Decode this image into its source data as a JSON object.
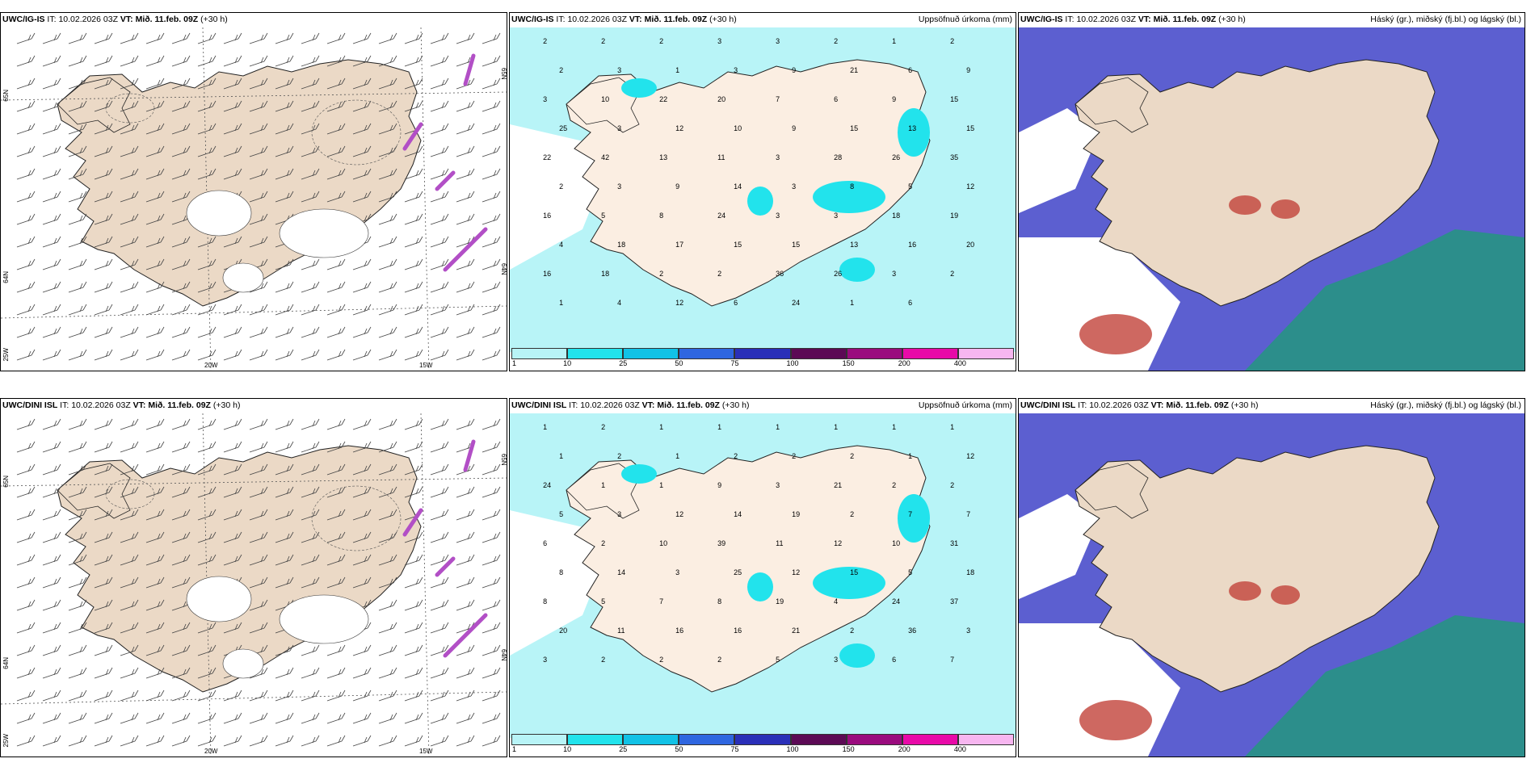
{
  "panels": [
    {
      "id": "top-wind",
      "model": "UWC/IG-IS",
      "it_label": "IT:",
      "it_value": "10.02.2026 03Z",
      "vt_label": "VT:",
      "vt_value": "Mið. 11.feb. 09Z",
      "lead": "(+30 h)",
      "right_title": "",
      "grid_labels": [
        "65N",
        "64N",
        "25W",
        "20W",
        "15W",
        "65N",
        "64N"
      ]
    },
    {
      "id": "top-precip",
      "model": "UWC/IG-IS",
      "it_label": "IT:",
      "it_value": "10.02.2026 03Z",
      "vt_label": "VT:",
      "vt_value": "Mið. 11.feb. 09Z",
      "lead": "(+30 h)",
      "right_title": "Uppsöfnuð úrkoma (mm)",
      "values": [
        "2",
        "2",
        "2",
        "3",
        "3",
        "2",
        "1",
        "2",
        "2",
        "3",
        "1",
        "3",
        "9",
        "21",
        "6",
        "9",
        "3",
        "10",
        "22",
        "20",
        "7",
        "6",
        "9",
        "15",
        "25",
        "3",
        "12",
        "10",
        "9",
        "15",
        "13",
        "15",
        "22",
        "42",
        "13",
        "11",
        "3",
        "28",
        "26",
        "35",
        "2",
        "3",
        "9",
        "14",
        "3",
        "8",
        "5",
        "12",
        "16",
        "5",
        "8",
        "24",
        "3",
        "3",
        "18",
        "19",
        "4",
        "18",
        "17",
        "15",
        "15",
        "13",
        "16",
        "20",
        "16",
        "18",
        "2",
        "2",
        "36",
        "26",
        "3",
        "2",
        "1",
        "4",
        "12",
        "6",
        "24",
        "1",
        "6"
      ]
    },
    {
      "id": "top-cloud",
      "model": "UWC/IG-IS",
      "it_label": "IT:",
      "it_value": "10.02.2026 03Z",
      "vt_label": "VT:",
      "vt_value": "Mið. 11.feb. 09Z",
      "lead": "(+30 h)",
      "right_title": "Háský (gr.), miðský (fj.bl.) og lágský (bl.)"
    },
    {
      "id": "bottom-wind",
      "model": "UWC/DINI ISL",
      "it_label": "IT:",
      "it_value": "10.02.2026 03Z",
      "vt_label": "VT:",
      "vt_value": "Mið. 11.feb. 09Z",
      "lead": "(+30 h)",
      "right_title": "",
      "grid_labels": [
        "65N",
        "64N",
        "25W",
        "20W",
        "15W",
        "65N",
        "64N"
      ]
    },
    {
      "id": "bottom-precip",
      "model": "UWC/DINI ISL",
      "it_label": "IT:",
      "it_value": "10.02.2026 03Z",
      "vt_label": "VT:",
      "vt_value": "Mið. 11.feb. 09Z",
      "lead": "(+30 h)",
      "right_title": "Uppsöfnuð úrkoma (mm)",
      "values": [
        "1",
        "2",
        "1",
        "1",
        "1",
        "1",
        "1",
        "1",
        "1",
        "2",
        "1",
        "2",
        "2",
        "2",
        "1",
        "12",
        "24",
        "1",
        "1",
        "9",
        "3",
        "21",
        "2",
        "2",
        "5",
        "3",
        "12",
        "14",
        "19",
        "2",
        "7",
        "7",
        "6",
        "2",
        "10",
        "39",
        "11",
        "12",
        "10",
        "31",
        "8",
        "14",
        "3",
        "25",
        "12",
        "15",
        "5",
        "18",
        "8",
        "5",
        "7",
        "8",
        "19",
        "4",
        "24",
        "37",
        "20",
        "11",
        "16",
        "16",
        "21",
        "2",
        "36",
        "3",
        "3",
        "2",
        "2",
        "2",
        "5",
        "3",
        "6",
        "7"
      ]
    },
    {
      "id": "bottom-cloud",
      "model": "UWC/DINI ISL",
      "it_label": "IT:",
      "it_value": "10.02.2026 03Z",
      "vt_label": "VT:",
      "vt_value": "Mið. 11.feb. 09Z",
      "lead": "(+30 h)",
      "right_title": "Háský (gr.), miðský (fj.bl.) og lágský (bl.)"
    }
  ],
  "precip_legend": {
    "labels": [
      "1",
      "10",
      "25",
      "50",
      "75",
      "100",
      "150",
      "200",
      "400"
    ],
    "colors": [
      "#b8f4f7",
      "#22e3ec",
      "#12c2e6",
      "#2f66e0",
      "#2a2fb8",
      "#5c0a55",
      "#9a0b7e",
      "#e80aa8",
      "#f7b6f0"
    ]
  },
  "colors": {
    "land": "#ebd9c6",
    "land_light": "#fbeee2",
    "precip_light": "#b8f4f7",
    "precip_mid": "#22e3ec",
    "cloud_high": "#5c5fd0",
    "cloud_low_green": "#1c9e74",
    "cloud_red": "#c2423a"
  }
}
